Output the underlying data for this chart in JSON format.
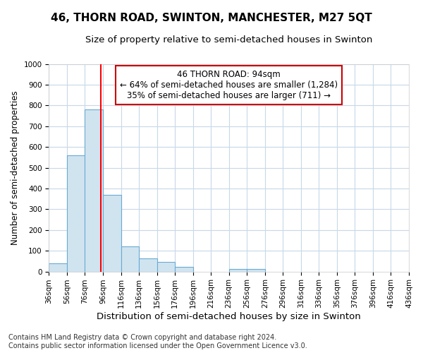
{
  "title": "46, THORN ROAD, SWINTON, MANCHESTER, M27 5QT",
  "subtitle": "Size of property relative to semi-detached houses in Swinton",
  "xlabel": "Distribution of semi-detached houses by size in Swinton",
  "ylabel": "Number of semi-detached properties",
  "bin_edges": [
    36,
    56,
    76,
    96,
    116,
    136,
    156,
    176,
    196,
    216,
    236,
    256,
    276,
    296,
    316,
    336,
    356,
    376,
    396,
    416,
    436
  ],
  "bar_values": [
    40,
    560,
    780,
    370,
    120,
    62,
    45,
    22,
    0,
    0,
    12,
    12,
    0,
    0,
    0,
    0,
    0,
    0,
    0,
    0
  ],
  "bar_color": "#d0e4f0",
  "bar_edge_color": "#6aaad4",
  "red_line_x": 94,
  "annotation_line1": "46 THORN ROAD: 94sqm",
  "annotation_line2": "← 64% of semi-detached houses are smaller (1,284)",
  "annotation_line3": "35% of semi-detached houses are larger (711) →",
  "annotation_box_color": "#ffffff",
  "annotation_box_edge": "#cc0000",
  "ylim": [
    0,
    1000
  ],
  "yticks": [
    0,
    100,
    200,
    300,
    400,
    500,
    600,
    700,
    800,
    900,
    1000
  ],
  "footer_line1": "Contains HM Land Registry data © Crown copyright and database right 2024.",
  "footer_line2": "Contains public sector information licensed under the Open Government Licence v3.0.",
  "bg_color": "#ffffff",
  "grid_color": "#c8d8e8",
  "title_fontsize": 11,
  "subtitle_fontsize": 9.5,
  "xlabel_fontsize": 9.5,
  "ylabel_fontsize": 8.5,
  "tick_fontsize": 7.5,
  "annotation_fontsize": 8.5,
  "footer_fontsize": 7
}
